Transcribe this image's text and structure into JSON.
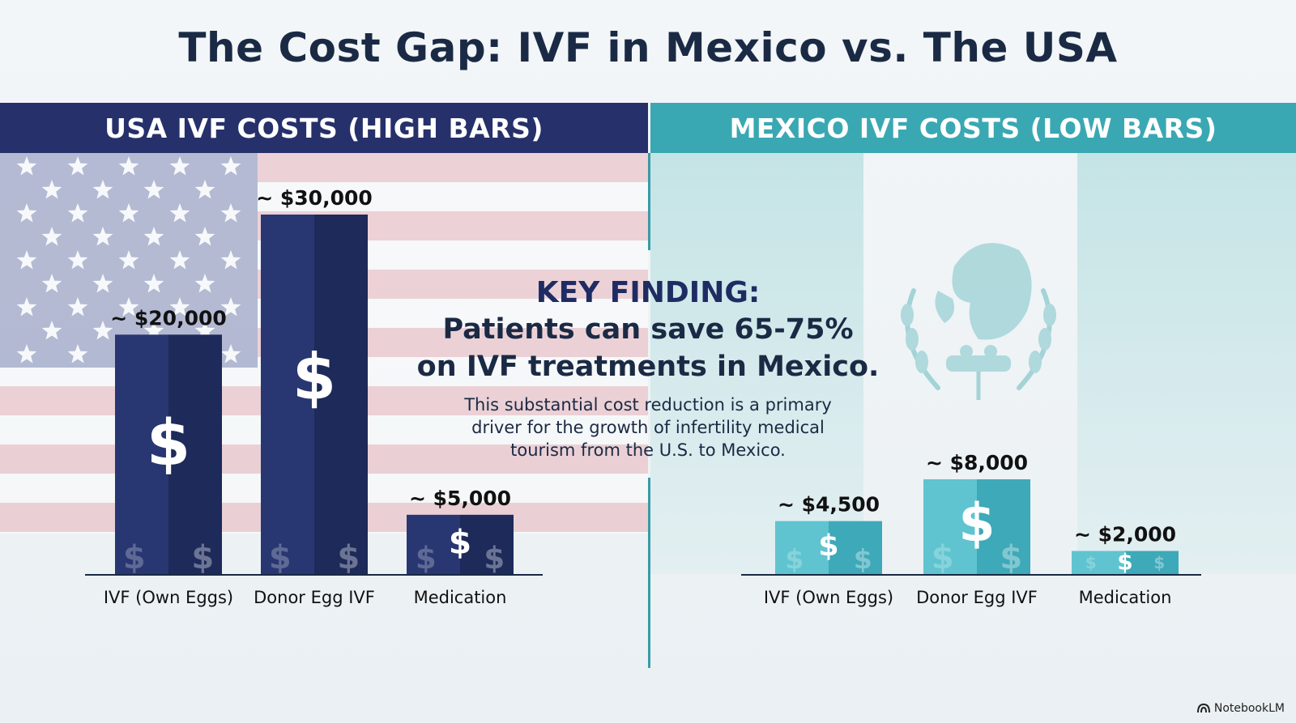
{
  "title": "The Cost Gap: IVF in Mexico vs. The USA",
  "panels": {
    "usa": "USA IVF COSTS (HIGH BARS)",
    "mexico": "MEXICO IVF COSTS (LOW BARS)"
  },
  "key_finding": {
    "heading": "KEY FINDING:",
    "line1": "Patients can save 65-75%",
    "line2": "on IVF treatments in Mexico.",
    "body": "This substantial cost reduction is a primary driver for the growth of infertility medical tourism from the U.S. to Mexico."
  },
  "footer": "NotebookLM",
  "colors": {
    "usa_band": "#26306a",
    "mexico_band": "#3aa8b2",
    "usa_bar_light": "#283772",
    "usa_bar_dark": "#1d2a5a",
    "mx_bar_light": "#5fc4d0",
    "mx_bar_dark": "#3ea9b8"
  },
  "chart_data": [
    {
      "type": "bar",
      "panel": "USA",
      "categories": [
        "IVF (Own Eggs)",
        "Donor Egg IVF",
        "Medication"
      ],
      "values": [
        20000,
        30000,
        5000
      ],
      "data_labels": [
        "~ $20,000",
        "~ $30,000",
        "~ $5,000"
      ],
      "ylim": [
        0,
        30000
      ]
    },
    {
      "type": "bar",
      "panel": "Mexico",
      "categories": [
        "IVF (Own Eggs)",
        "Donor Egg IVF",
        "Medication"
      ],
      "values": [
        4500,
        8000,
        2000
      ],
      "data_labels": [
        "~ $4,500",
        "~ $8,000",
        "~ $2,000"
      ],
      "ylim": [
        0,
        8000
      ]
    }
  ]
}
